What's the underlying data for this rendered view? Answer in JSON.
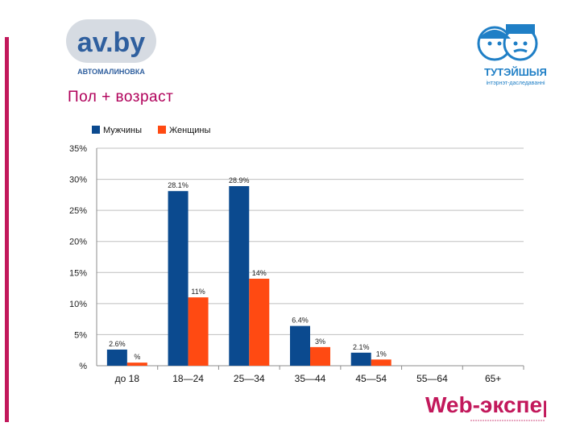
{
  "page": {
    "title": "Пол + возраст"
  },
  "logos": {
    "av_main": "av.by",
    "av_sub": "АВТОМАЛИНОВКА",
    "tut_main": "ТУТЭЙШЫЯ",
    "tut_sub": "інтэрнэт-даследаванні",
    "webexpert": "Web-эксперт"
  },
  "colors": {
    "men": "#0b4a8f",
    "women": "#ff4a12",
    "accent": "#b0005a"
  },
  "chart_data": {
    "type": "bar",
    "categories": [
      "до 18",
      "18—24",
      "25—34",
      "35—44",
      "45—54",
      "55—64",
      "65+"
    ],
    "series": [
      {
        "name": "Мужчины",
        "values": [
          2.6,
          28.1,
          28.9,
          6.4,
          2.1,
          0,
          0
        ],
        "labels": [
          "2.6%",
          "28.1%",
          "28.9%",
          "6.4%",
          "2.1%",
          "",
          ""
        ]
      },
      {
        "name": "Женщины",
        "values": [
          0.5,
          11,
          14,
          3,
          1,
          0,
          0
        ],
        "labels": [
          "%",
          "11%",
          "14%",
          "3%",
          "1%",
          "",
          ""
        ]
      }
    ],
    "y_ticks": [
      0,
      5,
      10,
      15,
      20,
      25,
      30,
      35
    ],
    "y_tick_labels": [
      "%",
      "5%",
      "10%",
      "15%",
      "20%",
      "25%",
      "30%",
      "35%"
    ],
    "ylim": [
      0,
      35
    ],
    "grid": true,
    "legend_position": "top-left"
  }
}
